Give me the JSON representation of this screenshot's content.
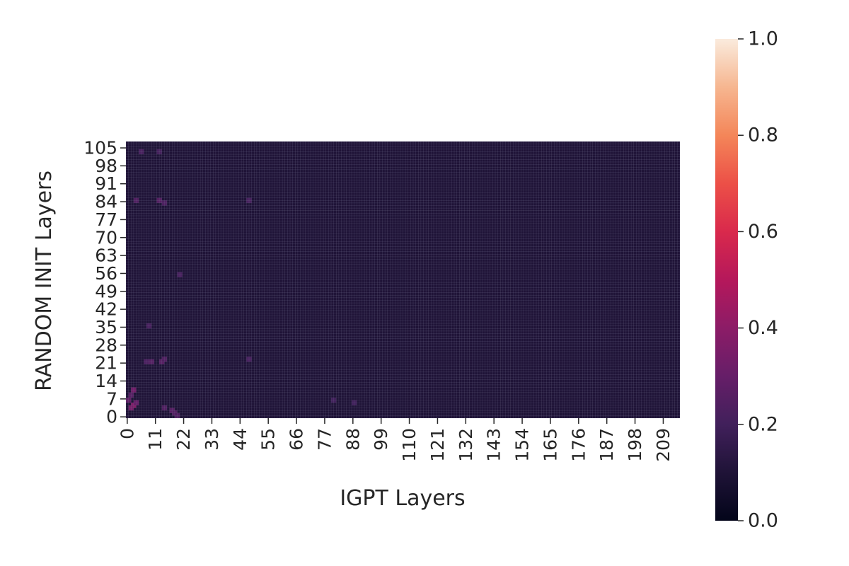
{
  "chart_data": {
    "type": "heatmap",
    "title": "",
    "xlabel": "IGPT Layers",
    "ylabel": "RANDOM INIT Layers",
    "n_cols": 216,
    "n_rows": 108,
    "x_ticks": [
      0,
      11,
      22,
      33,
      44,
      55,
      66,
      77,
      88,
      99,
      110,
      121,
      132,
      143,
      154,
      165,
      176,
      187,
      198,
      209
    ],
    "y_ticks": [
      0,
      7,
      14,
      21,
      28,
      35,
      42,
      49,
      56,
      63,
      70,
      77,
      84,
      91,
      98,
      105
    ],
    "colorbar": {
      "min": 0.0,
      "max": 1.0,
      "ticks": [
        0.0,
        0.2,
        0.4,
        0.6,
        0.8,
        1.0
      ],
      "tick_labels": [
        "0.0",
        "0.2",
        "0.4",
        "0.6",
        "0.8",
        "1.0"
      ],
      "colormap": "rocket"
    },
    "base_value": 0.1,
    "highlights": [
      {
        "col": 2,
        "row": 5,
        "value": 0.38
      },
      {
        "col": 1,
        "row": 4,
        "value": 0.34
      },
      {
        "col": 2,
        "row": 11,
        "value": 0.33
      },
      {
        "col": 3,
        "row": 6,
        "value": 0.3
      },
      {
        "col": 0,
        "row": 7,
        "value": 0.28
      },
      {
        "col": 1,
        "row": 9,
        "value": 0.26
      },
      {
        "col": 17,
        "row": 3,
        "value": 0.26
      },
      {
        "col": 18,
        "row": 2,
        "value": 0.25
      },
      {
        "col": 19,
        "row": 1,
        "value": 0.24
      },
      {
        "col": 14,
        "row": 4,
        "value": 0.24
      },
      {
        "col": 13,
        "row": 22,
        "value": 0.26
      },
      {
        "col": 9,
        "row": 22,
        "value": 0.25
      },
      {
        "col": 14,
        "row": 23,
        "value": 0.24
      },
      {
        "col": 7,
        "row": 22,
        "value": 0.23
      },
      {
        "col": 47,
        "row": 23,
        "value": 0.22
      },
      {
        "col": 12,
        "row": 85,
        "value": 0.25
      },
      {
        "col": 3,
        "row": 85,
        "value": 0.24
      },
      {
        "col": 14,
        "row": 84,
        "value": 0.23
      },
      {
        "col": 47,
        "row": 85,
        "value": 0.22
      },
      {
        "col": 20,
        "row": 56,
        "value": 0.22
      },
      {
        "col": 8,
        "row": 36,
        "value": 0.22
      },
      {
        "col": 5,
        "row": 104,
        "value": 0.22
      },
      {
        "col": 12,
        "row": 104,
        "value": 0.21
      },
      {
        "col": 80,
        "row": 7,
        "value": 0.2
      },
      {
        "col": 88,
        "row": 6,
        "value": 0.2
      }
    ]
  }
}
